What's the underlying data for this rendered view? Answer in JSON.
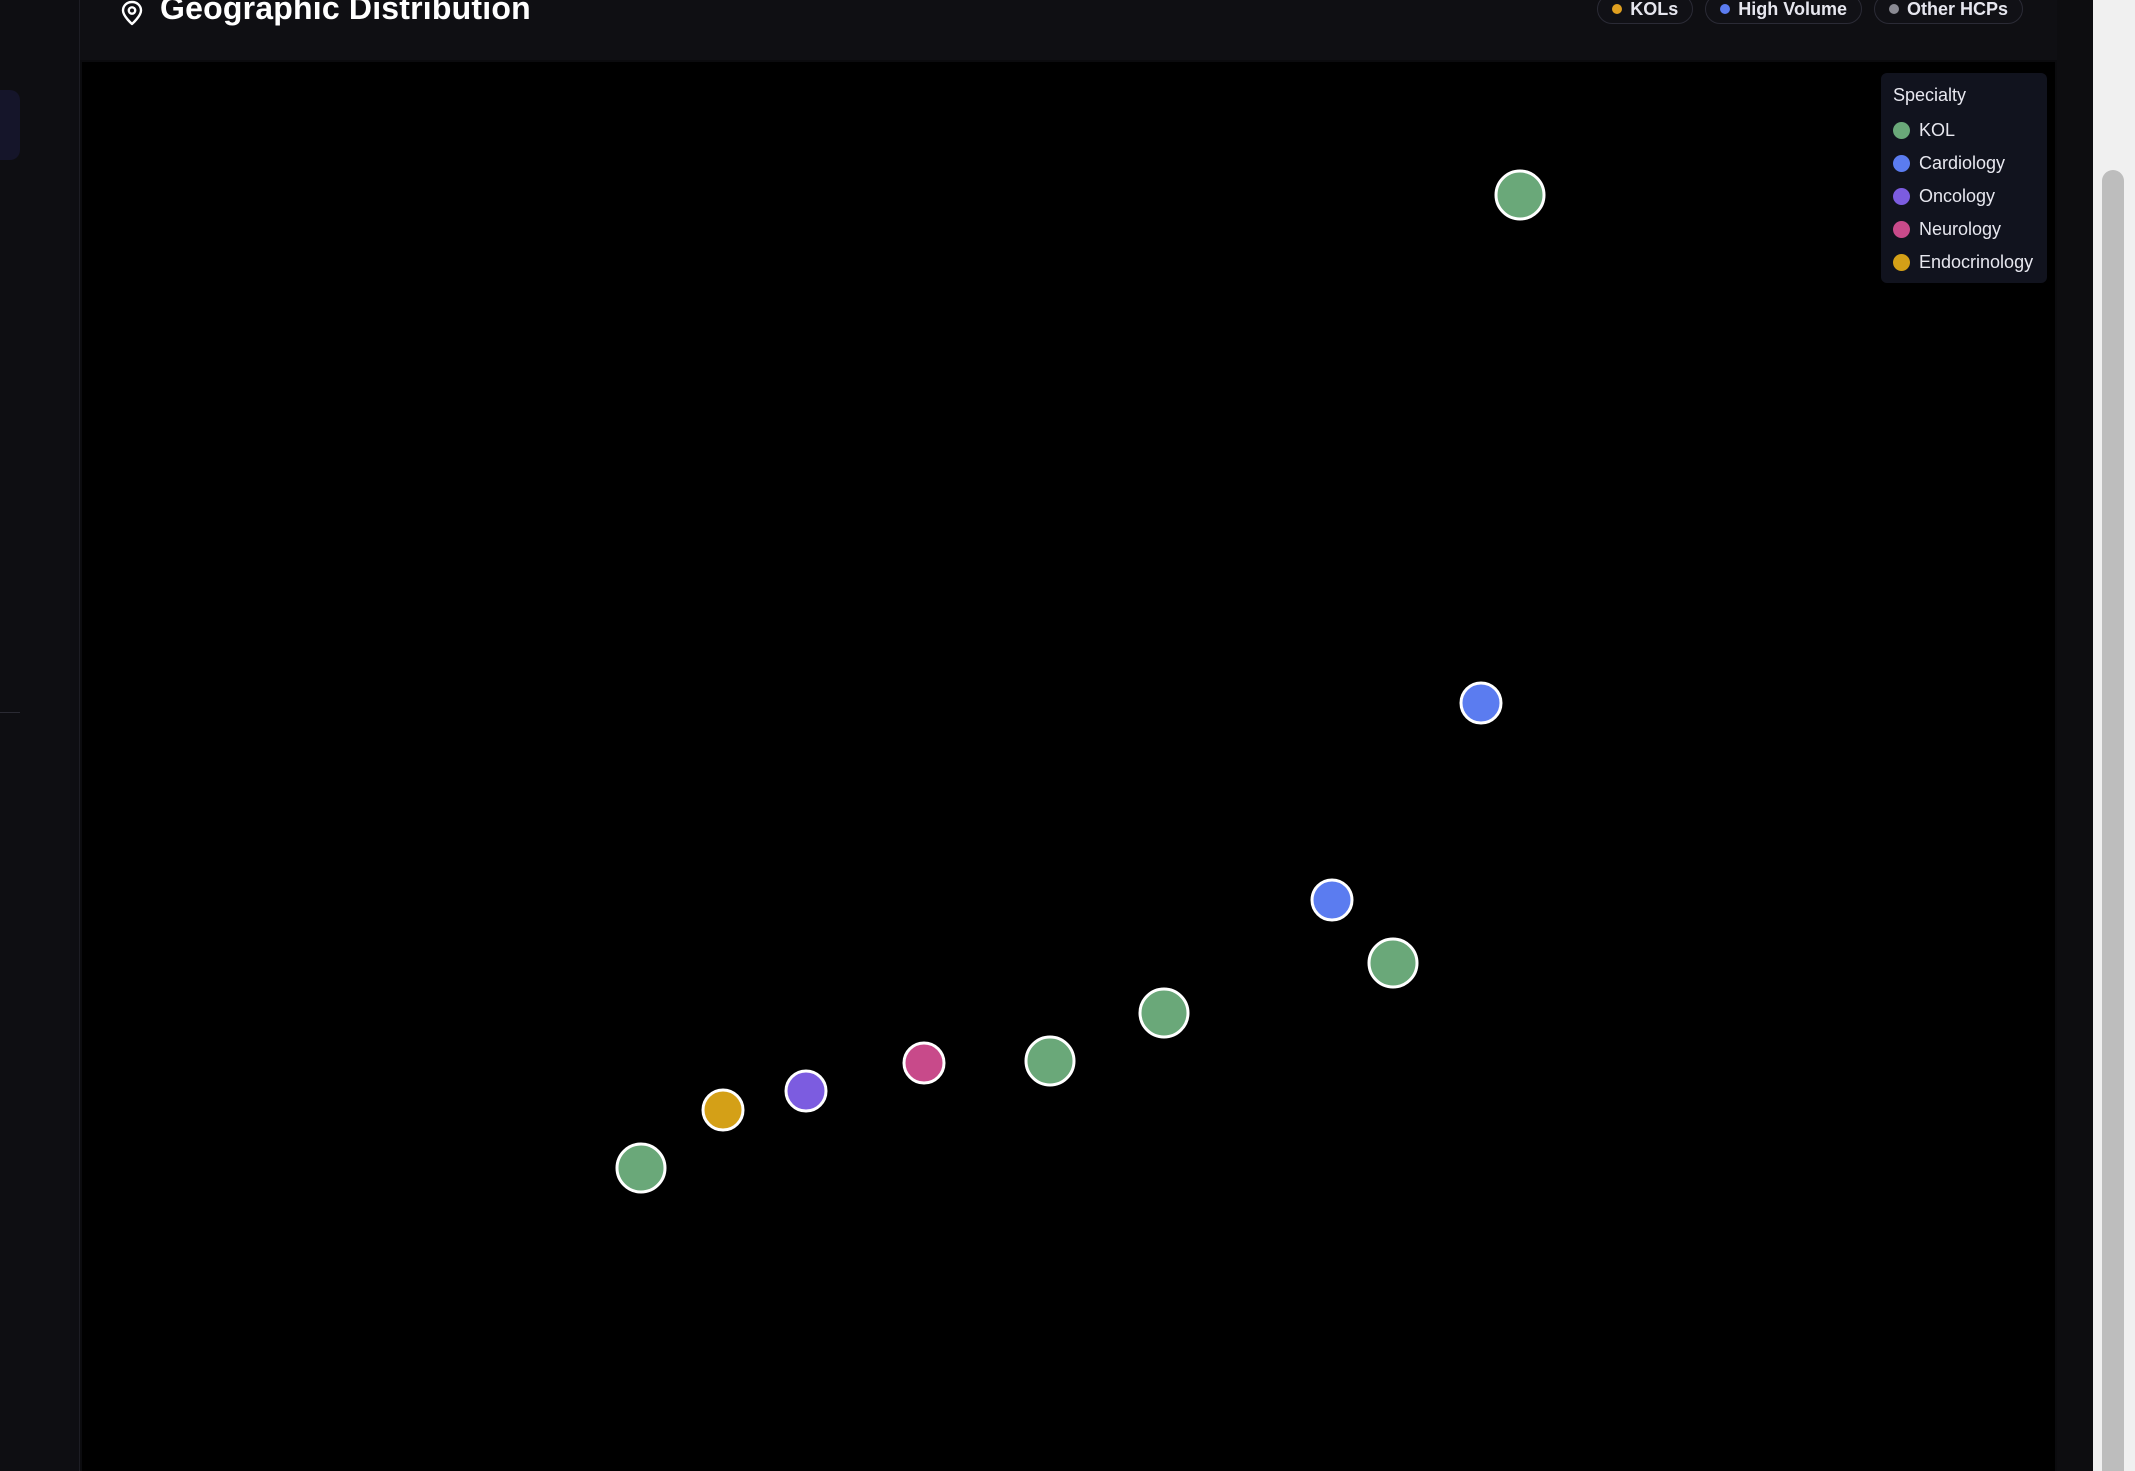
{
  "card": {
    "title": "Geographic Distribution",
    "title_icon": "map-pin-icon"
  },
  "filter_chips": [
    {
      "label": "KOLs",
      "color": "#e0a020"
    },
    {
      "label": "High Volume",
      "color": "#5b7cf0"
    },
    {
      "label": "Other HCPs",
      "color": "#8a8a93"
    }
  ],
  "legend": {
    "title": "Specialty",
    "items": [
      {
        "label": "KOL",
        "color": "#6aa879"
      },
      {
        "label": "Cardiology",
        "color": "#5b7cf0"
      },
      {
        "label": "Oncology",
        "color": "#7c5ce0"
      },
      {
        "label": "Neurology",
        "color": "#c84a8a"
      },
      {
        "label": "Endocrinology",
        "color": "#d4a017"
      }
    ]
  },
  "markers": [
    {
      "specialty": "KOL",
      "color": "#6aa879",
      "size": "large"
    },
    {
      "specialty": "Cardiology",
      "color": "#5b7cf0",
      "size": "medium"
    },
    {
      "specialty": "Cardiology",
      "color": "#5b7cf0",
      "size": "medium"
    },
    {
      "specialty": "KOL",
      "color": "#6aa879",
      "size": "large"
    },
    {
      "specialty": "KOL",
      "color": "#6aa879",
      "size": "large"
    },
    {
      "specialty": "KOL",
      "color": "#6aa879",
      "size": "large"
    },
    {
      "specialty": "Neurology",
      "color": "#c84a8a",
      "size": "medium"
    },
    {
      "specialty": "Oncology",
      "color": "#7c5ce0",
      "size": "medium"
    },
    {
      "specialty": "Endocrinology",
      "color": "#d4a017",
      "size": "medium"
    },
    {
      "specialty": "KOL",
      "color": "#6aa879",
      "size": "large"
    }
  ]
}
